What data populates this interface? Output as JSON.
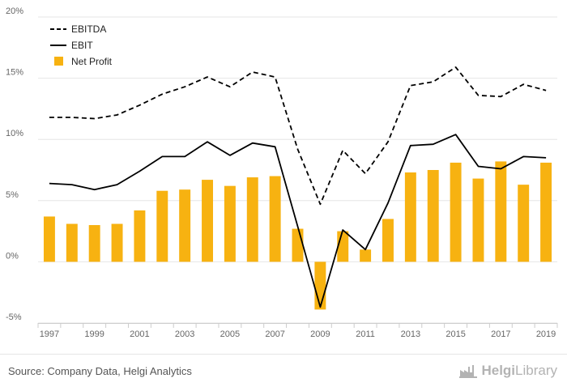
{
  "chart_data": {
    "type": "bar",
    "title": "",
    "xlabel": "",
    "ylabel": "",
    "ylim": [
      -5,
      20
    ],
    "yticks": [
      "20%",
      "15%",
      "10%",
      "5%",
      "0%",
      "-5%"
    ],
    "ytick_values": [
      20,
      15,
      10,
      5,
      0,
      -5
    ],
    "categories": [
      "1997",
      "1998",
      "1999",
      "2000",
      "2001",
      "2002",
      "2003",
      "2004",
      "2005",
      "2006",
      "2007",
      "2008",
      "2009",
      "2010",
      "2011",
      "2012",
      "2013",
      "2014",
      "2015",
      "2016",
      "2017",
      "2018",
      "2019"
    ],
    "xtick_labels": [
      "1997",
      "1999",
      "2001",
      "2003",
      "2005",
      "2007",
      "2009",
      "2011",
      "2013",
      "2015",
      "2017",
      "2019"
    ],
    "grid": true,
    "legend_position": "top-left",
    "series": [
      {
        "name": "EBITDA",
        "type": "line",
        "style": "dashed",
        "color": "#000000",
        "values": [
          11.8,
          11.8,
          11.7,
          12.0,
          12.8,
          13.7,
          14.3,
          15.1,
          14.3,
          15.5,
          15.1,
          9.2,
          4.7,
          9.1,
          7.2,
          9.8,
          14.4,
          14.7,
          15.9,
          13.6,
          13.5,
          14.5,
          14.0
        ]
      },
      {
        "name": "EBIT",
        "type": "line",
        "style": "solid",
        "color": "#000000",
        "values": [
          6.4,
          6.3,
          5.9,
          6.3,
          7.4,
          8.6,
          8.6,
          9.8,
          8.7,
          9.7,
          9.4,
          2.9,
          -3.7,
          2.6,
          1.0,
          4.8,
          9.5,
          9.6,
          10.4,
          7.8,
          7.6,
          8.6,
          8.5
        ]
      },
      {
        "name": "Net Profit",
        "type": "bar",
        "color": "#f7b211",
        "values": [
          3.7,
          3.1,
          3.0,
          3.1,
          4.2,
          5.8,
          5.9,
          6.7,
          6.2,
          6.9,
          7.0,
          2.7,
          -3.9,
          2.5,
          1.0,
          3.5,
          7.3,
          7.5,
          8.1,
          6.8,
          8.2,
          6.3,
          8.1
        ]
      }
    ]
  },
  "footer": {
    "source": "Source: Company Data, Helgi Analytics",
    "logo_bold": "Helgi",
    "logo_regular": "Library"
  },
  "colors": {
    "bar": "#f7b211",
    "line": "#000000",
    "grid": "#e6e6e6",
    "axis_text": "#666666"
  }
}
